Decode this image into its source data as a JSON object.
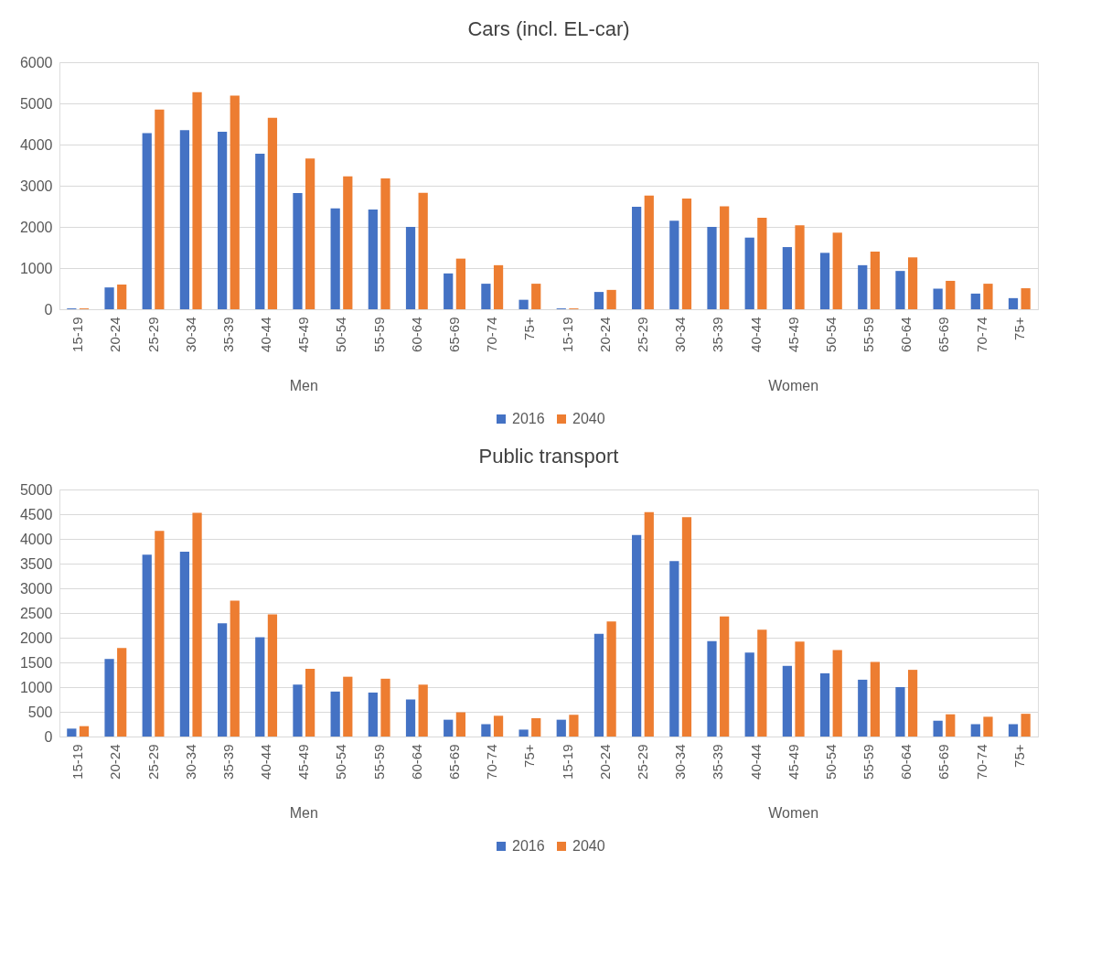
{
  "chart_data": [
    {
      "type": "bar",
      "title": "Cars (incl. EL-car)",
      "categories": [
        "15-19",
        "20-24",
        "25-29",
        "30-34",
        "35-39",
        "40-44",
        "45-49",
        "50-54",
        "55-59",
        "60-64",
        "65-69",
        "70-74",
        "75+",
        "15-19",
        "20-24",
        "25-29",
        "30-34",
        "35-39",
        "40-44",
        "45-49",
        "50-54",
        "55-59",
        "60-64",
        "65-69",
        "70-74",
        "75+"
      ],
      "series": [
        {
          "name": "2016",
          "color": "#4472c4",
          "values": [
            20,
            530,
            4280,
            4350,
            4310,
            3780,
            2820,
            2450,
            2420,
            2000,
            870,
            620,
            230,
            20,
            420,
            2490,
            2150,
            2000,
            1740,
            1510,
            1370,
            1070,
            930,
            500,
            380,
            270
          ]
        },
        {
          "name": "2040",
          "color": "#ed7d31",
          "values": [
            20,
            600,
            4850,
            5270,
            5190,
            4650,
            3660,
            3230,
            3180,
            2830,
            1230,
            1070,
            620,
            20,
            470,
            2760,
            2690,
            2500,
            2220,
            2040,
            1860,
            1400,
            1260,
            690,
            620,
            510
          ]
        }
      ],
      "annotations": [
        "Men",
        "Women"
      ],
      "ylim": [
        0,
        6000
      ],
      "yticks": [
        0,
        1000,
        2000,
        3000,
        4000,
        5000,
        6000
      ],
      "grid": "y",
      "legend": "bottom"
    },
    {
      "type": "bar",
      "title": "Public transport",
      "categories": [
        "15-19",
        "20-24",
        "25-29",
        "30-34",
        "35-39",
        "40-44",
        "45-49",
        "50-54",
        "55-59",
        "60-64",
        "65-69",
        "70-74",
        "75+",
        "15-19",
        "20-24",
        "25-29",
        "30-34",
        "35-39",
        "40-44",
        "45-49",
        "50-54",
        "55-59",
        "60-64",
        "65-69",
        "70-74",
        "75+"
      ],
      "series": [
        {
          "name": "2016",
          "color": "#4472c4",
          "values": [
            160,
            1570,
            3680,
            3740,
            2290,
            2010,
            1050,
            910,
            890,
            750,
            340,
            250,
            140,
            340,
            2080,
            4080,
            3550,
            1930,
            1700,
            1430,
            1280,
            1150,
            1000,
            320,
            250,
            250
          ]
        },
        {
          "name": "2040",
          "color": "#ed7d31",
          "values": [
            210,
            1790,
            4160,
            4530,
            2750,
            2470,
            1370,
            1210,
            1170,
            1050,
            490,
            420,
            370,
            440,
            2330,
            4540,
            4440,
            2430,
            2160,
            1920,
            1750,
            1510,
            1350,
            450,
            400,
            460
          ]
        }
      ],
      "annotations": [
        "Men",
        "Women"
      ],
      "ylim": [
        0,
        5000
      ],
      "yticks": [
        0,
        500,
        1000,
        1500,
        2000,
        2500,
        3000,
        3500,
        4000,
        4500,
        5000
      ],
      "grid": "y",
      "legend": "bottom"
    }
  ]
}
